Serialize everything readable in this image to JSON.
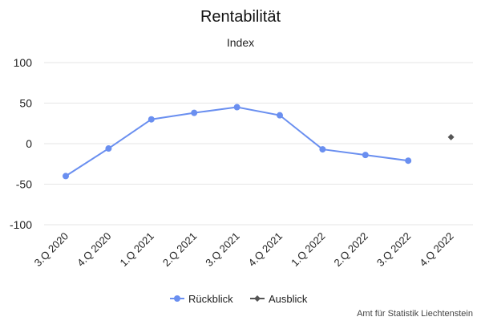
{
  "colors": {
    "rueckblick": "#6a8ff0",
    "ausblick": "#555555",
    "grid": "#e6e6e6"
  },
  "credit": "Amt für Statistik Liechtenstein",
  "chart_data": {
    "type": "line",
    "title": "Rentabilität",
    "subtitle": "Index",
    "xlabel": "",
    "ylabel": "",
    "categories": [
      "3.Q 2020",
      "4.Q 2020",
      "1.Q 2021",
      "2.Q 2021",
      "3.Q 2021",
      "4.Q 2021",
      "1.Q 2022",
      "2.Q 2022",
      "3.Q 2022",
      "4.Q 2022"
    ],
    "yticks": [
      100,
      50,
      0,
      -50,
      -100
    ],
    "ylim": [
      -100,
      100
    ],
    "grid": true,
    "legend_position": "bottom-center",
    "series": [
      {
        "name": "Rückblick",
        "marker": "circle",
        "values": [
          -40,
          -6,
          30,
          38,
          45,
          35,
          -7,
          -14,
          -21,
          null
        ]
      },
      {
        "name": "Ausblick",
        "marker": "diamond",
        "values": [
          null,
          null,
          null,
          null,
          null,
          null,
          null,
          null,
          null,
          8
        ]
      }
    ]
  }
}
